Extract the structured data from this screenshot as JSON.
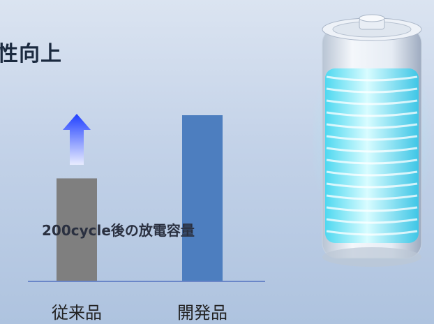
{
  "header": {
    "title": "性向上"
  },
  "chart_data": {
    "type": "bar",
    "categories": [
      "従来品",
      "開発品"
    ],
    "values": [
      62,
      100
    ],
    "annotation": "200cycle後の放電容量",
    "colors": [
      "#7f7f7f",
      "#4d7ebf"
    ],
    "arrow_color": "#1f3fff",
    "axis_color": "#6a86c8",
    "ylim": [
      0,
      100
    ]
  },
  "decoration": {
    "battery_icon": "glowing-battery-icon",
    "glow_color": "#7ff0ff"
  }
}
